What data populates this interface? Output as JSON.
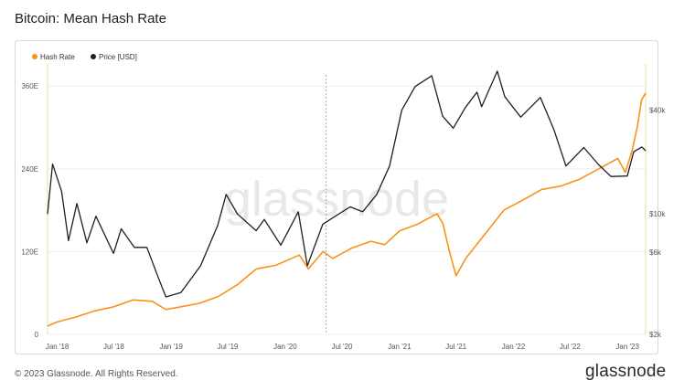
{
  "title": "Bitcoin: Mean Hash Rate",
  "footer": "© 2023 Glassnode. All Rights Reserved.",
  "brand": "glassnode",
  "watermark": "glassnode",
  "colors": {
    "hash_rate": "#f7931a",
    "price": "#1f1f1f",
    "grid": "#efefef"
  },
  "chart_data": {
    "type": "line",
    "title": "Bitcoin: Mean Hash Rate",
    "legend_position": "top-left",
    "grid": true,
    "x_ticks": [
      "Jan '18",
      "Jul '18",
      "Jan '19",
      "Jul '19",
      "Jan '20",
      "Jul '20",
      "Jan '21",
      "Jul '21",
      "Jan '22",
      "Jul '22",
      "Jan '23"
    ],
    "x_range": [
      "2017-12-01",
      "2023-02-28"
    ],
    "marker_date": "2020-05-11",
    "y_left": {
      "label": "",
      "unit": "EH/s",
      "range": [
        0,
        400
      ],
      "ticks": [
        0,
        120,
        240,
        360
      ],
      "tick_labels": [
        "0",
        "120E",
        "240E",
        "360E"
      ]
    },
    "y_right": {
      "label": "",
      "scale": "log",
      "range": [
        2000,
        80000
      ],
      "ticks": [
        2000,
        6000,
        10000,
        40000
      ],
      "tick_labels": [
        "$2k",
        "$6k",
        "$10k",
        "$40k"
      ]
    },
    "series": [
      {
        "name": "Hash Rate",
        "axis": "left",
        "x": [
          "2017-12-01",
          "2018-01-01",
          "2018-03-01",
          "2018-05-01",
          "2018-07-01",
          "2018-09-01",
          "2018-11-01",
          "2018-12-15",
          "2019-02-01",
          "2019-04-01",
          "2019-06-01",
          "2019-08-01",
          "2019-10-01",
          "2019-12-01",
          "2020-02-15",
          "2020-03-15",
          "2020-05-01",
          "2020-06-01",
          "2020-08-01",
          "2020-10-01",
          "2020-11-15",
          "2021-01-01",
          "2021-03-01",
          "2021-05-01",
          "2021-05-20",
          "2021-06-10",
          "2021-07-01",
          "2021-08-01",
          "2021-10-01",
          "2021-12-01",
          "2022-02-01",
          "2022-04-01",
          "2022-06-01",
          "2022-08-01",
          "2022-10-01",
          "2022-12-01",
          "2022-12-25",
          "2023-01-15",
          "2023-02-01",
          "2023-02-15",
          "2023-02-28"
        ],
        "values": [
          12,
          18,
          25,
          34,
          40,
          50,
          48,
          36,
          40,
          45,
          55,
          72,
          95,
          100,
          115,
          95,
          120,
          110,
          125,
          135,
          130,
          150,
          160,
          175,
          160,
          120,
          85,
          110,
          145,
          180,
          195,
          210,
          215,
          225,
          240,
          255,
          235,
          265,
          300,
          340,
          350
        ]
      },
      {
        "name": "Price [USD]",
        "axis": "right",
        "x": [
          "2017-12-01",
          "2017-12-17",
          "2018-01-15",
          "2018-02-06",
          "2018-03-05",
          "2018-04-06",
          "2018-05-05",
          "2018-06-30",
          "2018-07-25",
          "2018-09-05",
          "2018-10-15",
          "2018-11-20",
          "2018-12-15",
          "2019-02-01",
          "2019-04-05",
          "2019-05-30",
          "2019-06-26",
          "2019-08-01",
          "2019-09-30",
          "2019-10-26",
          "2019-12-18",
          "2020-02-12",
          "2020-03-12",
          "2020-04-30",
          "2020-06-01",
          "2020-07-27",
          "2020-09-05",
          "2020-10-20",
          "2020-11-30",
          "2021-01-08",
          "2021-02-20",
          "2021-04-14",
          "2021-05-19",
          "2021-06-22",
          "2021-07-31",
          "2021-09-06",
          "2021-09-21",
          "2021-11-10",
          "2021-12-04",
          "2022-01-24",
          "2022-03-28",
          "2022-05-10",
          "2022-06-18",
          "2022-08-14",
          "2022-09-30",
          "2022-11-09",
          "2022-12-31",
          "2023-01-21",
          "2023-02-16",
          "2023-02-28"
        ],
        "values": [
          10000,
          19500,
          13500,
          7000,
          11500,
          6800,
          9700,
          5900,
          8200,
          6400,
          6400,
          4300,
          3300,
          3500,
          5000,
          8600,
          13000,
          10000,
          8000,
          9300,
          6600,
          10300,
          5000,
          8700,
          9500,
          11000,
          10300,
          13000,
          19000,
          40000,
          55000,
          63500,
          37000,
          31500,
          41500,
          51000,
          42000,
          67500,
          48000,
          36500,
          47500,
          31000,
          19000,
          24300,
          19400,
          16500,
          16600,
          23000,
          24500,
          23300
        ]
      }
    ]
  }
}
